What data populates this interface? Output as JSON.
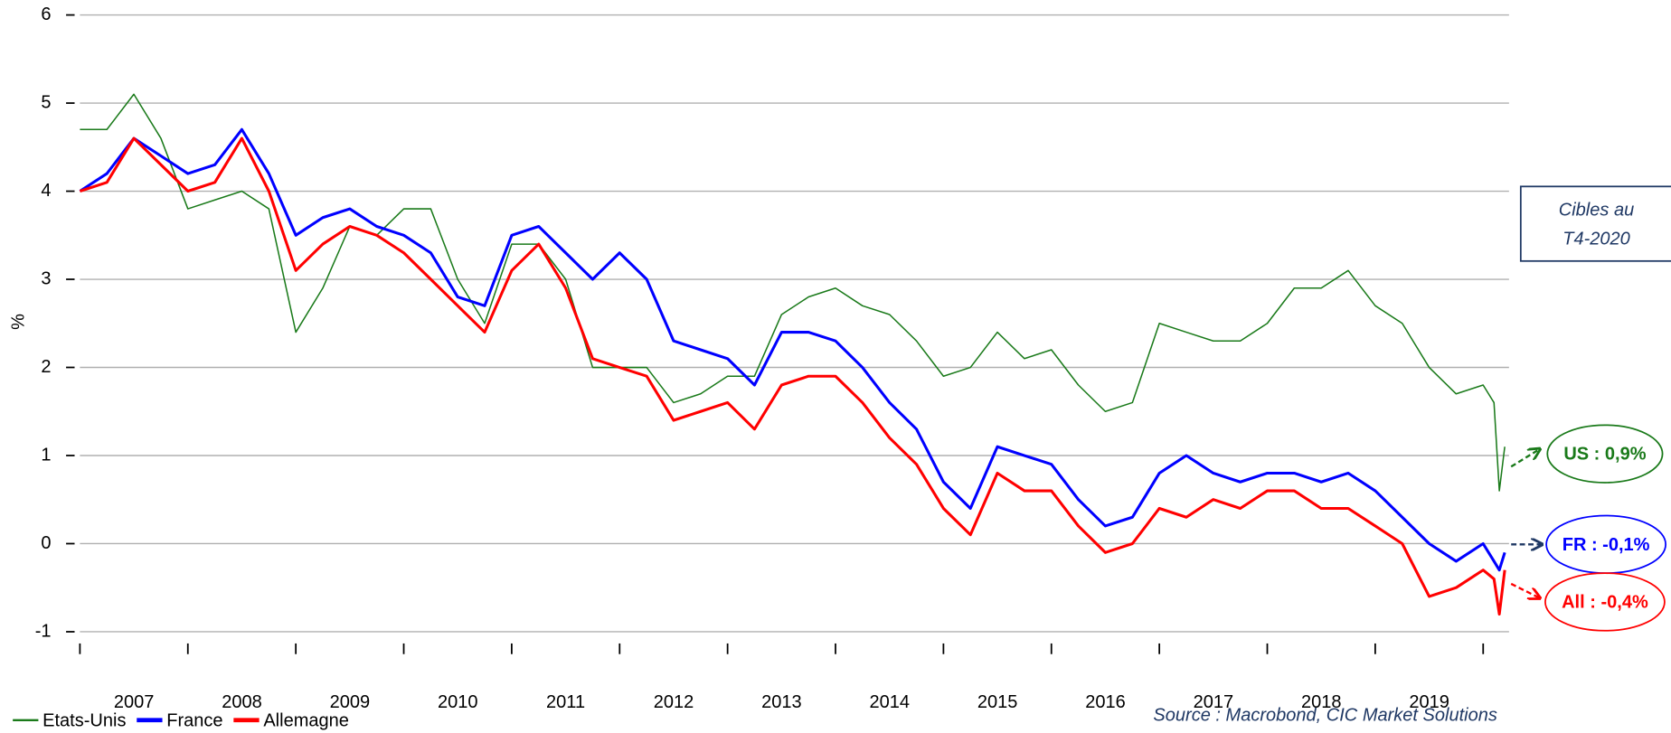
{
  "chart_data": {
    "type": "line",
    "y_label": "%",
    "source": "Source : Macrobond, CIC Market Solutions",
    "target_box": [
      "Cibles au",
      "T4-2020"
    ],
    "targets": [
      "US : 0,9%",
      "FR : -0,1%",
      "All : -0,4%"
    ],
    "x": [
      2007.0,
      2007.25,
      2007.5,
      2007.75,
      2008.0,
      2008.25,
      2008.5,
      2008.75,
      2009.0,
      2009.25,
      2009.5,
      2009.75,
      2010.0,
      2010.25,
      2010.5,
      2010.75,
      2011.0,
      2011.25,
      2011.5,
      2011.75,
      2012.0,
      2012.25,
      2012.5,
      2012.75,
      2013.0,
      2013.25,
      2013.5,
      2013.75,
      2014.0,
      2014.25,
      2014.5,
      2014.75,
      2015.0,
      2015.25,
      2015.5,
      2015.75,
      2016.0,
      2016.25,
      2016.5,
      2016.75,
      2017.0,
      2017.25,
      2017.5,
      2017.75,
      2018.0,
      2018.25,
      2018.5,
      2018.75,
      2019.0,
      2019.25,
      2019.5,
      2019.75,
      2020.0,
      2020.1,
      2020.15,
      2020.2
    ],
    "series": [
      {
        "name": "Etats-Unis",
        "color": "#1a7a1a",
        "width": 1.3,
        "values": [
          4.7,
          4.7,
          5.1,
          4.6,
          3.8,
          3.9,
          4.0,
          3.8,
          2.4,
          2.9,
          3.6,
          3.5,
          3.8,
          3.8,
          3.0,
          2.5,
          3.4,
          3.4,
          3.0,
          2.0,
          2.0,
          2.0,
          1.6,
          1.7,
          1.9,
          1.9,
          2.6,
          2.8,
          2.9,
          2.7,
          2.6,
          2.3,
          1.9,
          2.0,
          2.4,
          2.1,
          2.2,
          1.8,
          1.5,
          1.6,
          2.5,
          2.4,
          2.3,
          2.3,
          2.5,
          2.9,
          2.9,
          3.1,
          2.7,
          2.5,
          2.0,
          1.7,
          1.8,
          1.6,
          0.6,
          1.1
        ]
      },
      {
        "name": "France",
        "color": "#0000ff",
        "width": 2.6,
        "values": [
          4.0,
          4.2,
          4.6,
          4.4,
          4.2,
          4.3,
          4.7,
          4.2,
          3.5,
          3.7,
          3.8,
          3.6,
          3.5,
          3.3,
          2.8,
          2.7,
          3.5,
          3.6,
          3.3,
          3.0,
          3.3,
          3.0,
          2.3,
          2.2,
          2.1,
          1.8,
          2.4,
          2.4,
          2.3,
          2.0,
          1.6,
          1.3,
          0.7,
          0.4,
          1.1,
          1.0,
          0.9,
          0.5,
          0.2,
          0.3,
          0.8,
          1.0,
          0.8,
          0.7,
          0.8,
          0.8,
          0.7,
          0.8,
          0.6,
          0.3,
          0.0,
          -0.2,
          0.0,
          -0.2,
          -0.3,
          -0.1
        ]
      },
      {
        "name": "Allemagne",
        "color": "#ff0000",
        "width": 2.6,
        "values": [
          4.0,
          4.1,
          4.6,
          4.3,
          4.0,
          4.1,
          4.6,
          4.0,
          3.1,
          3.4,
          3.6,
          3.5,
          3.3,
          3.0,
          2.7,
          2.4,
          3.1,
          3.4,
          2.9,
          2.1,
          2.0,
          1.9,
          1.4,
          1.5,
          1.6,
          1.3,
          1.8,
          1.9,
          1.9,
          1.6,
          1.2,
          0.9,
          0.4,
          0.1,
          0.8,
          0.6,
          0.6,
          0.2,
          -0.1,
          0.0,
          0.4,
          0.3,
          0.5,
          0.4,
          0.6,
          0.6,
          0.4,
          0.4,
          0.2,
          0.0,
          -0.6,
          -0.5,
          -0.3,
          -0.4,
          -0.8,
          -0.3
        ]
      }
    ],
    "xlim": [
      2007,
      2020.2
    ],
    "xticks": [
      {
        "value": 2007.5,
        "label": "2007"
      },
      {
        "value": 2008.5,
        "label": "2008"
      },
      {
        "value": 2009.5,
        "label": "2009"
      },
      {
        "value": 2010.5,
        "label": "2010"
      },
      {
        "value": 2011.5,
        "label": "2011"
      },
      {
        "value": 2012.5,
        "label": "2012"
      },
      {
        "value": 2013.5,
        "label": "2013"
      },
      {
        "value": 2014.5,
        "label": "2014"
      },
      {
        "value": 2015.5,
        "label": "2015"
      },
      {
        "value": 2016.5,
        "label": "2016"
      },
      {
        "value": 2017.5,
        "label": "2017"
      },
      {
        "value": 2018.5,
        "label": "2018"
      },
      {
        "value": 2019.5,
        "label": "2019"
      }
    ],
    "xminor": [
      2007,
      2008,
      2009,
      2010,
      2011,
      2012,
      2013,
      2014,
      2015,
      2016,
      2017,
      2018,
      2019,
      2020
    ],
    "ylim": [
      -1,
      6
    ],
    "yticks": [
      -1,
      0,
      1,
      2,
      3,
      4,
      5,
      6
    ],
    "grid": true,
    "legend": "bottom-left"
  }
}
